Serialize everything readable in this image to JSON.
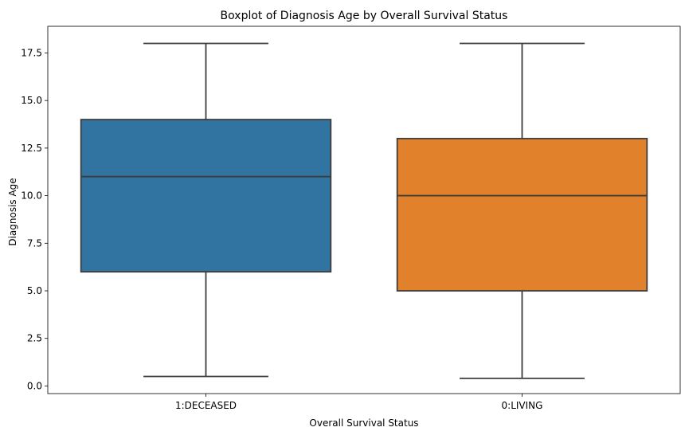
{
  "chart_data": {
    "type": "box",
    "title": "Boxplot of Diagnosis Age by Overall Survival Status",
    "xlabel": "Overall Survival Status",
    "ylabel": "Diagnosis Age",
    "ylim": [
      -0.4,
      18.9
    ],
    "yticks": [
      0.0,
      2.5,
      5.0,
      7.5,
      10.0,
      12.5,
      15.0,
      17.5
    ],
    "ytick_labels": [
      "0.0",
      "2.5",
      "5.0",
      "7.5",
      "10.0",
      "12.5",
      "15.0",
      "17.5"
    ],
    "grid": false,
    "categories": [
      "1:DECEASED",
      "0:LIVING"
    ],
    "boxes": [
      {
        "category": "1:DECEASED",
        "min": 0.5,
        "q1": 6.0,
        "median": 11.0,
        "q3": 14.0,
        "max": 18.0,
        "color": "#3274a1"
      },
      {
        "category": "0:LIVING",
        "min": 0.4,
        "q1": 5.0,
        "median": 10.0,
        "q3": 13.0,
        "max": 18.0,
        "color": "#e1812c"
      }
    ],
    "line_color": "#3d3d3d"
  }
}
